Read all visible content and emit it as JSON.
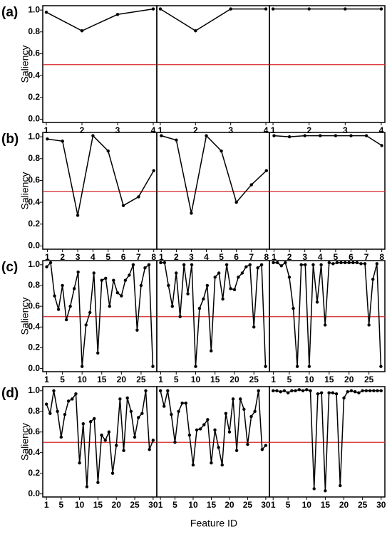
{
  "chart_data": [
    {
      "type": "line",
      "label": "(a)",
      "ylabel": "Saliency",
      "threshold": 0.5,
      "threshold_color": "#d62728",
      "color": "#000000",
      "ylim": [
        -0.03,
        1.04
      ],
      "yticks": [
        {
          "value": 0,
          "label": "0.0"
        },
        0.2,
        0.4,
        0.6,
        0.8,
        {
          "value": 1,
          "label": "1.0"
        }
      ],
      "xlim": [
        0.9,
        4.1
      ],
      "xticks": [
        1,
        2,
        3,
        4
      ],
      "x": [
        1,
        2,
        3,
        4
      ],
      "series": [
        {
          "values": [
            0.98,
            0.81,
            0.96,
            1.01
          ]
        },
        {
          "values": [
            1.01,
            0.81,
            1.01,
            1.01
          ]
        },
        {
          "values": [
            1.01,
            1.01,
            1.01,
            1.01
          ]
        }
      ]
    },
    {
      "type": "line",
      "label": "(b)",
      "ylabel": "Saliency",
      "threshold": 0.5,
      "threshold_color": "#d62728",
      "color": "#000000",
      "ylim": [
        -0.03,
        1.04
      ],
      "yticks": [
        {
          "value": 0,
          "label": "0.0"
        },
        0.2,
        0.4,
        0.6,
        0.8,
        {
          "value": 1,
          "label": "1.0"
        }
      ],
      "xlim": [
        0.7,
        8.2
      ],
      "xticks": [
        1,
        2,
        3,
        4,
        5,
        6,
        7,
        8
      ],
      "x": [
        1,
        2,
        3,
        4,
        5,
        6,
        7,
        8
      ],
      "series": [
        {
          "values": [
            0.98,
            0.96,
            0.28,
            1.01,
            0.87,
            0.37,
            0.45,
            0.69
          ]
        },
        {
          "values": [
            1.01,
            0.97,
            0.3,
            1.01,
            0.87,
            0.4,
            0.56,
            0.69
          ]
        },
        {
          "values": [
            1.01,
            1.0,
            1.01,
            1.01,
            1.01,
            1.01,
            1.01,
            0.92
          ]
        }
      ]
    },
    {
      "type": "line",
      "label": "(c)",
      "ylabel": "Saliency",
      "threshold": 0.5,
      "threshold_color": "#d62728",
      "color": "#000000",
      "ylim": [
        -0.03,
        1.04
      ],
      "yticks": [
        {
          "value": 0,
          "label": "0.0"
        },
        0.2,
        0.4,
        0.6,
        0.8,
        {
          "value": 1,
          "label": "1.0"
        }
      ],
      "xlim": [
        0,
        29
      ],
      "xticks": [
        1,
        5,
        10,
        15,
        20,
        25
      ],
      "x": [
        1,
        2,
        3,
        4,
        5,
        6,
        7,
        8,
        9,
        10,
        11,
        12,
        13,
        14,
        15,
        16,
        17,
        18,
        19,
        20,
        21,
        22,
        23,
        24,
        25,
        26,
        27,
        28
      ],
      "series": [
        {
          "values": [
            0.98,
            1.02,
            0.7,
            0.57,
            0.8,
            0.47,
            0.6,
            0.77,
            0.93,
            0.02,
            0.42,
            0.54,
            0.92,
            0.15,
            0.85,
            0.87,
            0.6,
            0.85,
            0.73,
            0.7,
            0.85,
            0.9,
            1.0,
            0.37,
            0.8,
            0.97,
            1.0,
            0.02
          ]
        },
        {
          "values": [
            1.02,
            1.02,
            0.8,
            0.6,
            0.92,
            0.5,
            1.0,
            0.72,
            1.0,
            0.02,
            0.58,
            0.67,
            0.8,
            0.17,
            0.88,
            0.92,
            0.67,
            1.0,
            0.77,
            0.76,
            0.88,
            0.92,
            0.98,
            1.0,
            0.4,
            0.97,
            1.0,
            0.02
          ]
        },
        {
          "values": [
            1.02,
            1.02,
            0.99,
            1.02,
            0.88,
            0.58,
            0.02,
            1.0,
            1.0,
            0.02,
            1.0,
            0.64,
            1.0,
            0.42,
            1.02,
            1.01,
            1.02,
            1.02,
            1.02,
            1.02,
            1.02,
            1.02,
            1.01,
            1.01,
            0.42,
            0.86,
            1.01,
            0.02
          ]
        }
      ]
    },
    {
      "type": "line",
      "label": "(d)",
      "ylabel": "Saliency",
      "threshold": 0.5,
      "threshold_color": "#d62728",
      "color": "#000000",
      "ylim": [
        -0.03,
        1.04
      ],
      "yticks": [
        {
          "value": 0,
          "label": "0.0"
        },
        0.2,
        0.4,
        0.6,
        0.8,
        {
          "value": 1,
          "label": "1.0"
        }
      ],
      "xlim": [
        0,
        31
      ],
      "xticks": [
        1,
        5,
        10,
        15,
        20,
        25,
        30
      ],
      "x": [
        1,
        2,
        3,
        4,
        5,
        6,
        7,
        8,
        9,
        10,
        11,
        12,
        13,
        14,
        15,
        16,
        17,
        18,
        19,
        20,
        21,
        22,
        23,
        24,
        25,
        26,
        27,
        28,
        29,
        30
      ],
      "series": [
        {
          "values": [
            0.87,
            0.78,
            1.0,
            0.8,
            0.55,
            0.77,
            0.9,
            0.92,
            0.97,
            0.3,
            0.68,
            0.07,
            0.7,
            0.73,
            0.11,
            0.57,
            0.52,
            0.6,
            0.2,
            0.47,
            0.92,
            0.42,
            0.93,
            0.8,
            0.55,
            0.74,
            0.78,
            1.0,
            0.43,
            0.52
          ]
        },
        {
          "values": [
            1.0,
            0.85,
            1.0,
            0.77,
            0.5,
            0.8,
            0.88,
            0.88,
            0.57,
            0.28,
            0.62,
            0.63,
            0.67,
            0.72,
            0.3,
            0.62,
            0.45,
            0.28,
            0.78,
            0.6,
            0.92,
            0.42,
            0.92,
            0.82,
            0.48,
            0.75,
            0.8,
            1.0,
            0.43,
            0.47
          ]
        },
        {
          "values": [
            1.0,
            1.0,
            0.99,
            1.0,
            0.98,
            1.0,
            1.0,
            1.01,
            1.0,
            1.01,
            1.0,
            0.05,
            0.97,
            0.98,
            0.03,
            0.98,
            0.98,
            0.97,
            0.08,
            0.93,
            0.99,
            1.0,
            0.99,
            0.98,
            1.0,
            1.0,
            1.0,
            1.0,
            1.0,
            1.0
          ]
        }
      ]
    }
  ],
  "figure": {
    "xlabel": "Feature ID"
  }
}
